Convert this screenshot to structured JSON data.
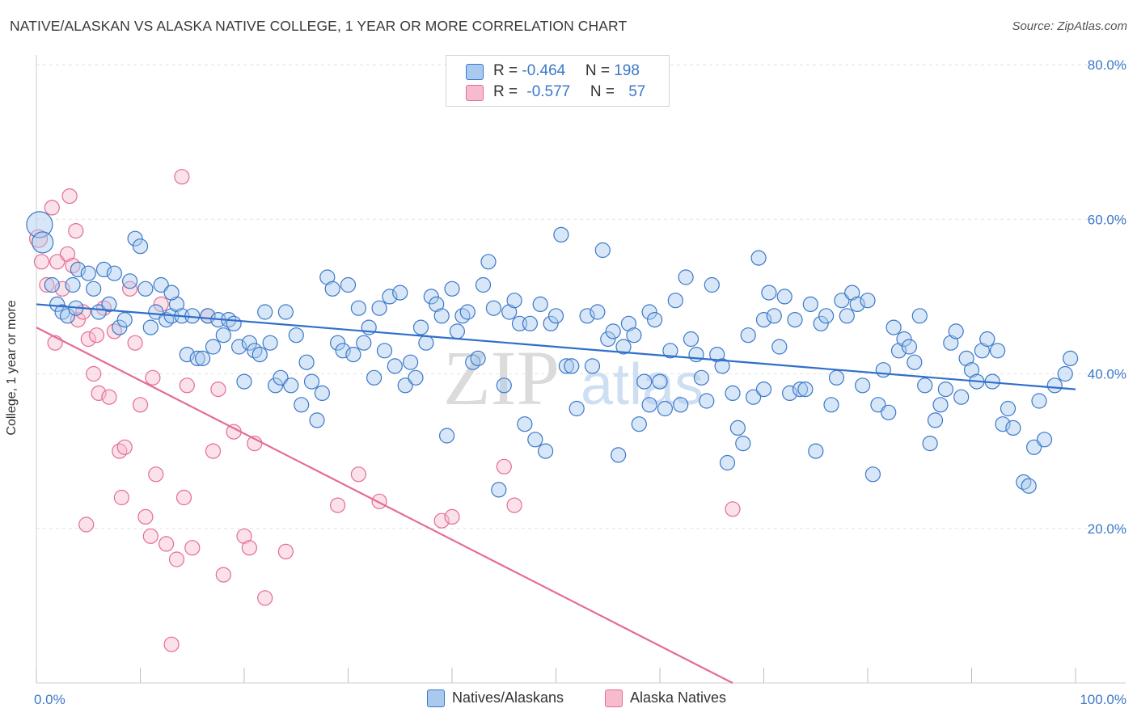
{
  "header": {
    "title": "NATIVE/ALASKAN VS ALASKA NATIVE COLLEGE, 1 YEAR OR MORE CORRELATION CHART",
    "source": "Source: ZipAtlas.com"
  },
  "watermark": {
    "zip": "ZIP",
    "atlas": "atlas"
  },
  "colors": {
    "blue": "#3b78c9",
    "blue_fill": "#a9c9ee",
    "blue_line": "#2f6fca",
    "pink": "#e46c97",
    "pink_fill": "#f6bccd",
    "grid": "#e3e3e3"
  },
  "legend": {
    "rows": [
      {
        "r_label": "R = ",
        "r_value": "-0.464",
        "n_label": "N = ",
        "n_value": "198"
      },
      {
        "r_label": "R = ",
        "r_value": "-0.577",
        "n_label": "N = ",
        "n_value": "57"
      }
    ]
  },
  "chart_data": {
    "type": "scatter",
    "title": "NATIVE/ALASKAN VS ALASKA NATIVE COLLEGE, 1 YEAR OR MORE CORRELATION CHART",
    "xlabel": "",
    "ylabel": "College, 1 year or more",
    "xlim": [
      0,
      100
    ],
    "ylim": [
      0,
      80
    ],
    "x_tick_labels": [
      "0.0%",
      "100.0%"
    ],
    "y_tick_labels": [
      "20.0%",
      "40.0%",
      "60.0%",
      "80.0%"
    ],
    "y_ticks": [
      20,
      40,
      60,
      80
    ],
    "grid": true,
    "legend_position": "top-center",
    "series": [
      {
        "name": "Natives/Alaskans",
        "color": "#3b78c9",
        "trend": {
          "x": [
            0,
            100
          ],
          "y": [
            49.0,
            38.0
          ]
        },
        "points": [
          [
            0.3,
            59.3
          ],
          [
            0.6,
            57.0
          ],
          [
            1.5,
            51.5
          ],
          [
            2.0,
            49.0
          ],
          [
            2.5,
            48.0
          ],
          [
            3.0,
            47.5
          ],
          [
            3.5,
            51.5
          ],
          [
            3.8,
            48.5
          ],
          [
            4.0,
            53.5
          ],
          [
            5.0,
            53.0
          ],
          [
            5.5,
            51.0
          ],
          [
            6.0,
            48.0
          ],
          [
            6.5,
            53.5
          ],
          [
            7.0,
            49.0
          ],
          [
            7.5,
            53.0
          ],
          [
            8.0,
            46.0
          ],
          [
            8.5,
            47.0
          ],
          [
            9.0,
            52.0
          ],
          [
            9.5,
            57.5
          ],
          [
            10.0,
            56.5
          ],
          [
            10.5,
            51.0
          ],
          [
            11.0,
            46.0
          ],
          [
            11.5,
            48.0
          ],
          [
            12.0,
            51.5
          ],
          [
            12.5,
            47.0
          ],
          [
            13.0,
            47.5
          ],
          [
            13.5,
            49.0
          ],
          [
            14.0,
            47.5
          ],
          [
            14.5,
            42.5
          ],
          [
            15.0,
            47.5
          ],
          [
            15.5,
            42.0
          ],
          [
            16.0,
            42.0
          ],
          [
            16.5,
            47.5
          ],
          [
            17.0,
            43.5
          ],
          [
            17.5,
            47.0
          ],
          [
            18.0,
            45.0
          ],
          [
            18.5,
            47.0
          ],
          [
            19.0,
            46.5
          ],
          [
            19.5,
            43.5
          ],
          [
            20.0,
            39.0
          ],
          [
            20.5,
            44.0
          ],
          [
            21.0,
            43.0
          ],
          [
            21.5,
            42.5
          ],
          [
            22.0,
            48.0
          ],
          [
            22.5,
            44.0
          ],
          [
            23.0,
            38.5
          ],
          [
            23.5,
            39.5
          ],
          [
            24.0,
            48.0
          ],
          [
            24.5,
            38.5
          ],
          [
            25.0,
            45.0
          ],
          [
            25.5,
            36.0
          ],
          [
            26.0,
            41.5
          ],
          [
            26.5,
            39.0
          ],
          [
            27.0,
            34.0
          ],
          [
            27.5,
            37.5
          ],
          [
            28.0,
            52.5
          ],
          [
            28.5,
            51.0
          ],
          [
            29.0,
            44.0
          ],
          [
            29.5,
            43.0
          ],
          [
            30.0,
            51.5
          ],
          [
            30.5,
            42.5
          ],
          [
            31.0,
            48.5
          ],
          [
            31.5,
            44.0
          ],
          [
            32.0,
            46.0
          ],
          [
            32.5,
            39.5
          ],
          [
            33.0,
            48.5
          ],
          [
            33.5,
            43.0
          ],
          [
            34.0,
            50.0
          ],
          [
            34.5,
            41.0
          ],
          [
            35.0,
            50.5
          ],
          [
            35.5,
            38.5
          ],
          [
            36.0,
            41.5
          ],
          [
            36.5,
            39.5
          ],
          [
            37.0,
            46.0
          ],
          [
            37.5,
            44.0
          ],
          [
            38.0,
            50.0
          ],
          [
            38.5,
            49.0
          ],
          [
            39.0,
            47.5
          ],
          [
            39.5,
            32.0
          ],
          [
            40.0,
            51.0
          ],
          [
            40.5,
            45.5
          ],
          [
            41.0,
            47.5
          ],
          [
            41.5,
            48.0
          ],
          [
            42.0,
            41.5
          ],
          [
            42.5,
            42.0
          ],
          [
            43.0,
            51.5
          ],
          [
            43.5,
            54.5
          ],
          [
            44.0,
            48.5
          ],
          [
            44.5,
            25.0
          ],
          [
            45.0,
            38.5
          ],
          [
            45.5,
            48.0
          ],
          [
            46.0,
            49.5
          ],
          [
            46.5,
            46.5
          ],
          [
            47.0,
            33.5
          ],
          [
            47.5,
            46.5
          ],
          [
            48.0,
            31.5
          ],
          [
            48.5,
            49.0
          ],
          [
            49.0,
            30.0
          ],
          [
            49.5,
            46.5
          ],
          [
            50.0,
            47.5
          ],
          [
            50.5,
            58.0
          ],
          [
            51.0,
            41.0
          ],
          [
            51.5,
            41.0
          ],
          [
            52.0,
            35.5
          ],
          [
            53.0,
            47.5
          ],
          [
            53.5,
            41.0
          ],
          [
            54.0,
            48.0
          ],
          [
            54.5,
            56.0
          ],
          [
            55.0,
            44.5
          ],
          [
            55.5,
            45.5
          ],
          [
            56.0,
            29.5
          ],
          [
            56.5,
            43.5
          ],
          [
            57.0,
            46.5
          ],
          [
            57.5,
            45.0
          ],
          [
            58.0,
            33.5
          ],
          [
            58.5,
            39.0
          ],
          [
            59.0,
            48.0
          ],
          [
            59.5,
            47.0
          ],
          [
            60.0,
            39.0
          ],
          [
            60.5,
            35.5
          ],
          [
            61.0,
            43.0
          ],
          [
            61.5,
            49.5
          ],
          [
            62.0,
            36.0
          ],
          [
            62.5,
            52.5
          ],
          [
            63.0,
            44.5
          ],
          [
            63.5,
            42.5
          ],
          [
            64.0,
            39.5
          ],
          [
            64.5,
            36.5
          ],
          [
            65.0,
            51.5
          ],
          [
            65.5,
            42.5
          ],
          [
            66.0,
            41.0
          ],
          [
            66.5,
            28.5
          ],
          [
            67.0,
            37.5
          ],
          [
            67.5,
            33.0
          ],
          [
            68.0,
            31.0
          ],
          [
            68.5,
            45.0
          ],
          [
            69.0,
            37.0
          ],
          [
            69.5,
            55.0
          ],
          [
            70.0,
            47.0
          ],
          [
            70.5,
            50.5
          ],
          [
            71.0,
            47.5
          ],
          [
            71.5,
            43.5
          ],
          [
            72.0,
            50.0
          ],
          [
            72.5,
            37.5
          ],
          [
            73.0,
            47.0
          ],
          [
            73.5,
            38.0
          ],
          [
            74.0,
            38.0
          ],
          [
            74.5,
            49.0
          ],
          [
            75.0,
            30.0
          ],
          [
            75.5,
            46.5
          ],
          [
            76.0,
            47.5
          ],
          [
            76.5,
            36.0
          ],
          [
            77.0,
            39.5
          ],
          [
            77.5,
            49.5
          ],
          [
            78.0,
            47.5
          ],
          [
            78.5,
            50.5
          ],
          [
            79.0,
            49.0
          ],
          [
            79.5,
            38.5
          ],
          [
            80.0,
            49.5
          ],
          [
            80.5,
            27.0
          ],
          [
            81.0,
            36.0
          ],
          [
            81.5,
            40.5
          ],
          [
            82.0,
            35.0
          ],
          [
            82.5,
            46.0
          ],
          [
            83.0,
            43.0
          ],
          [
            83.5,
            44.5
          ],
          [
            84.0,
            43.5
          ],
          [
            84.5,
            41.5
          ],
          [
            85.0,
            47.5
          ],
          [
            85.5,
            38.5
          ],
          [
            86.0,
            31.0
          ],
          [
            86.5,
            34.0
          ],
          [
            87.0,
            36.0
          ],
          [
            87.5,
            38.0
          ],
          [
            88.0,
            44.0
          ],
          [
            88.5,
            45.5
          ],
          [
            89.0,
            37.0
          ],
          [
            89.5,
            42.0
          ],
          [
            90.0,
            40.5
          ],
          [
            90.5,
            39.0
          ],
          [
            91.0,
            43.0
          ],
          [
            91.5,
            44.5
          ],
          [
            92.0,
            39.0
          ],
          [
            92.5,
            43.0
          ],
          [
            93.0,
            33.5
          ],
          [
            93.5,
            35.5
          ],
          [
            94.0,
            33.0
          ],
          [
            95.0,
            26.0
          ],
          [
            95.5,
            25.5
          ],
          [
            96.0,
            30.5
          ],
          [
            96.5,
            36.5
          ],
          [
            97.0,
            31.5
          ],
          [
            98.0,
            38.5
          ],
          [
            99.0,
            40.0
          ],
          [
            99.5,
            42.0
          ],
          [
            59.0,
            36.0
          ],
          [
            13.0,
            50.5
          ],
          [
            70.0,
            38.0
          ]
        ]
      },
      {
        "name": "Alaska Natives",
        "color": "#e46c97",
        "trend": {
          "x": [
            0,
            67
          ],
          "y": [
            46.0,
            0.0
          ]
        },
        "points": [
          [
            0.2,
            57.5
          ],
          [
            0.5,
            54.5
          ],
          [
            1.0,
            51.5
          ],
          [
            1.5,
            61.5
          ],
          [
            2.0,
            54.5
          ],
          [
            2.5,
            51.0
          ],
          [
            3.0,
            55.5
          ],
          [
            3.2,
            63.0
          ],
          [
            3.5,
            54.0
          ],
          [
            3.8,
            58.5
          ],
          [
            4.0,
            47.0
          ],
          [
            4.5,
            48.0
          ],
          [
            4.8,
            20.5
          ],
          [
            5.0,
            44.5
          ],
          [
            5.5,
            40.0
          ],
          [
            5.8,
            45.0
          ],
          [
            6.0,
            37.5
          ],
          [
            6.5,
            48.5
          ],
          [
            7.0,
            37.0
          ],
          [
            7.5,
            45.5
          ],
          [
            8.0,
            30.0
          ],
          [
            8.2,
            24.0
          ],
          [
            8.5,
            30.5
          ],
          [
            9.0,
            51.0
          ],
          [
            9.5,
            44.0
          ],
          [
            10.0,
            36.0
          ],
          [
            10.5,
            21.5
          ],
          [
            11.0,
            19.0
          ],
          [
            11.2,
            39.5
          ],
          [
            11.5,
            27.0
          ],
          [
            12.0,
            49.0
          ],
          [
            12.5,
            18.0
          ],
          [
            13.0,
            5.0
          ],
          [
            13.5,
            16.0
          ],
          [
            14.0,
            65.5
          ],
          [
            14.2,
            24.0
          ],
          [
            14.5,
            38.5
          ],
          [
            15.0,
            17.5
          ],
          [
            16.5,
            47.5
          ],
          [
            17.0,
            30.0
          ],
          [
            17.5,
            38.0
          ],
          [
            18.0,
            14.0
          ],
          [
            19.0,
            32.5
          ],
          [
            20.0,
            19.0
          ],
          [
            20.5,
            17.5
          ],
          [
            21.0,
            31.0
          ],
          [
            22.0,
            11.0
          ],
          [
            24.0,
            17.0
          ],
          [
            29.0,
            23.0
          ],
          [
            31.0,
            27.0
          ],
          [
            33.0,
            23.5
          ],
          [
            39.0,
            21.0
          ],
          [
            40.0,
            21.5
          ],
          [
            45.0,
            28.0
          ],
          [
            46.0,
            23.0
          ],
          [
            67.0,
            22.5
          ],
          [
            1.8,
            44.0
          ]
        ]
      }
    ]
  },
  "bottom_legend": {
    "items": [
      {
        "label": "Natives/Alaskans"
      },
      {
        "label": "Alaska Natives"
      }
    ]
  }
}
